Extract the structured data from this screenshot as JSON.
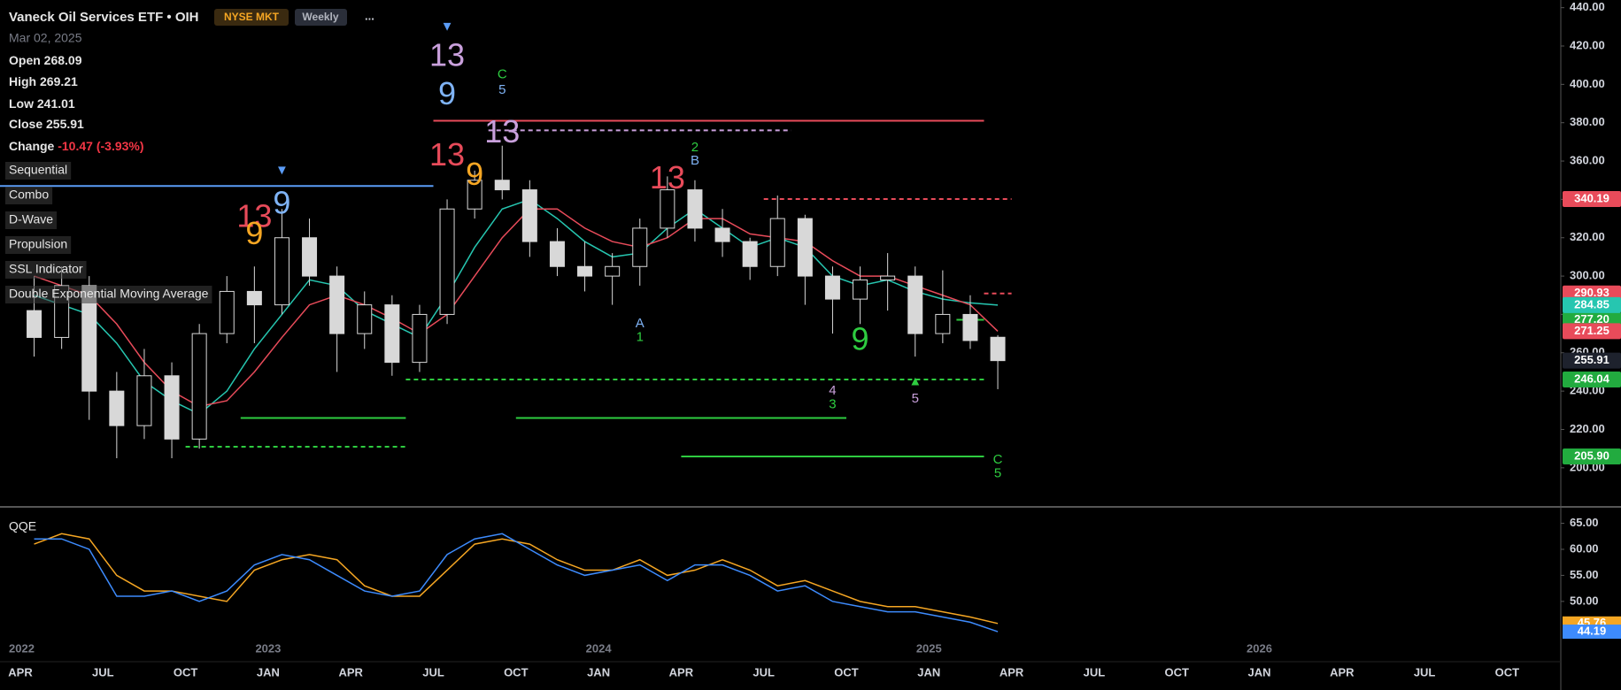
{
  "header": {
    "title": "Vaneck Oil Services ETF • OIH",
    "exchange": "NYSE MKT",
    "interval": "Weekly",
    "menu": "...",
    "date": "Mar 02, 2025",
    "open_label": "Open",
    "high_label": "High",
    "low_label": "Low",
    "close_label": "Close",
    "change_label": "Change",
    "change": -10.47,
    "change_percent_label": "(-3.93%)"
  },
  "indicators": [
    "Sequential",
    "Combo",
    "D-Wave",
    "Propulsion",
    "SSL Indicator",
    "Double Exponential Moving Average"
  ],
  "chart_data": [
    {
      "type": "candlestick",
      "x": [
        "2022-04",
        "2022-05",
        "2022-06",
        "2022-07",
        "2022-08",
        "2022-09",
        "2022-10",
        "2022-11",
        "2022-12",
        "2023-01",
        "2023-02",
        "2023-03",
        "2023-04",
        "2023-05",
        "2023-06",
        "2023-07",
        "2023-08",
        "2023-09",
        "2023-10",
        "2023-11",
        "2023-12",
        "2024-01",
        "2024-02",
        "2024-03",
        "2024-04",
        "2024-05",
        "2024-06",
        "2024-07",
        "2024-08",
        "2024-09",
        "2024-10",
        "2024-11",
        "2024-12",
        "2025-01",
        "2025-02",
        "2025-03"
      ],
      "open": [
        282,
        268,
        295,
        240,
        222,
        248,
        215,
        270,
        292,
        285,
        320,
        300,
        270,
        285,
        255,
        280,
        335,
        350,
        345,
        318,
        305,
        300,
        305,
        325,
        345,
        325,
        318,
        305,
        330,
        300,
        288,
        298,
        300,
        270,
        280,
        268.09
      ],
      "high": [
        300,
        305,
        300,
        250,
        262,
        255,
        275,
        300,
        305,
        335,
        330,
        305,
        292,
        290,
        285,
        340,
        355,
        368,
        350,
        325,
        318,
        312,
        330,
        352,
        350,
        335,
        320,
        342,
        332,
        305,
        305,
        312,
        305,
        303,
        290,
        269.21
      ],
      "low": [
        258,
        262,
        225,
        205,
        215,
        205,
        210,
        265,
        265,
        280,
        295,
        250,
        262,
        248,
        250,
        275,
        330,
        340,
        310,
        300,
        292,
        285,
        295,
        320,
        318,
        310,
        298,
        300,
        285,
        270,
        275,
        282,
        258,
        265,
        262,
        241.01
      ],
      "close": [
        268,
        295,
        240,
        222,
        248,
        215,
        270,
        292,
        285,
        320,
        300,
        270,
        285,
        255,
        280,
        335,
        350,
        345,
        318,
        305,
        300,
        305,
        325,
        345,
        325,
        318,
        305,
        330,
        300,
        288,
        298,
        300,
        270,
        280,
        266.38,
        255.91
      ],
      "candle_color": "#d8d8d8",
      "overlays": [
        {
          "color": "#26c6b0",
          "values": [
            290,
            285,
            280,
            265,
            245,
            235,
            228,
            240,
            262,
            280,
            298,
            295,
            282,
            275,
            268,
            290,
            315,
            335,
            340,
            330,
            318,
            310,
            312,
            325,
            335,
            325,
            315,
            320,
            315,
            300,
            295,
            298,
            292,
            288,
            286,
            284.85
          ]
        },
        {
          "color": "#e84b5a",
          "values": [
            300,
            295,
            290,
            275,
            255,
            240,
            232,
            235,
            250,
            268,
            285,
            290,
            285,
            278,
            270,
            280,
            300,
            320,
            335,
            335,
            325,
            318,
            315,
            320,
            330,
            330,
            322,
            320,
            318,
            308,
            300,
            300,
            295,
            290,
            285,
            271.25
          ]
        }
      ],
      "levels": [
        {
          "value": 381,
          "from": "2023-07",
          "to": "2025-03",
          "color": "#e84b5a",
          "dashed": false
        },
        {
          "value": 376,
          "from": "2023-09",
          "to": "2024-08",
          "color": "#c9a0dc",
          "dashed": true
        },
        {
          "value": 347,
          "from": "2022-03",
          "to": "2023-07",
          "color": "#5b9cf6",
          "dashed": false
        },
        {
          "value": 340.19,
          "label": "340.19",
          "from": "2024-07",
          "to": "2025-04",
          "color": "#e84b5a",
          "dashed": true
        },
        {
          "value": 290.93,
          "label": "290.93",
          "from": "2025-03",
          "to": "2025-04",
          "color": "#e84b5a",
          "dashed": true
        },
        {
          "value": 277.2,
          "label": "277.20",
          "from": "2025-02",
          "to": "2025-03",
          "color": "#2ecc40",
          "dashed": false
        },
        {
          "value": 246.04,
          "label": "246.04",
          "from": "2023-06",
          "to": "2025-03",
          "color": "#2ecc40",
          "dashed": true
        },
        {
          "value": 226,
          "from": "2022-12",
          "to": "2023-06",
          "color": "#2ecc40",
          "dashed": false
        },
        {
          "value": 226,
          "from": "2023-10",
          "to": "2024-10",
          "color": "#2ecc40",
          "dashed": false
        },
        {
          "value": 211,
          "from": "2022-10",
          "to": "2023-06",
          "color": "#2ecc40",
          "dashed": true
        },
        {
          "value": 205.9,
          "label": "205.90",
          "from": "2024-04",
          "to": "2025-03",
          "color": "#2ecc40",
          "dashed": false
        }
      ],
      "annotations": [
        {
          "text": "▼",
          "x": "2023-07",
          "y": 430,
          "color": "#5b9cf6"
        },
        {
          "text": "13",
          "x": "2023-07",
          "y": 414,
          "color": "#c9a0dc"
        },
        {
          "text": "9",
          "x": "2023-07",
          "y": 394,
          "color": "#7fb3f5"
        },
        {
          "text": "13",
          "x": "2023-07",
          "y": 362,
          "color": "#e84b5a"
        },
        {
          "text": "9",
          "x": "2023-08",
          "y": 352,
          "color": "#f5a623"
        },
        {
          "text": "13",
          "x": "2023-09",
          "y": 374,
          "color": "#c9a0dc"
        },
        {
          "text": "C",
          "x": "2023-09",
          "y": 405,
          "color": "#2ecc40"
        },
        {
          "text": "5",
          "x": "2023-09",
          "y": 397,
          "color": "#7fb3f5"
        },
        {
          "text": "▼",
          "x": "2023-01",
          "y": 355,
          "color": "#5b9cf6"
        },
        {
          "text": "9",
          "x": "2023-01",
          "y": 337,
          "color": "#7fb3f5"
        },
        {
          "text": "13",
          "x": "2022-12",
          "y": 330,
          "color": "#e84b5a"
        },
        {
          "text": "9",
          "x": "2022-12",
          "y": 321,
          "color": "#f5a623"
        },
        {
          "text": "13",
          "x": "2024-03",
          "y": 350,
          "color": "#e84b5a"
        },
        {
          "text": "2",
          "x": "2024-04",
          "y": 367,
          "color": "#2ecc40"
        },
        {
          "text": "B",
          "x": "2024-04",
          "y": 360,
          "color": "#7fb3f5"
        },
        {
          "text": "A",
          "x": "2024-02",
          "y": 275,
          "color": "#7fb3f5"
        },
        {
          "text": "1",
          "x": "2024-02",
          "y": 268,
          "color": "#2ecc40"
        },
        {
          "text": "9",
          "x": "2024-10",
          "y": 266,
          "color": "#2ecc40"
        },
        {
          "text": "4",
          "x": "2024-09",
          "y": 240,
          "color": "#c9a0dc"
        },
        {
          "text": "3",
          "x": "2024-09",
          "y": 233,
          "color": "#2ecc40"
        },
        {
          "text": "▲",
          "x": "2024-12",
          "y": 245,
          "color": "#2ecc40"
        },
        {
          "text": "5",
          "x": "2024-12",
          "y": 236,
          "color": "#c9a0dc"
        },
        {
          "text": "C",
          "x": "2025-03",
          "y": 204,
          "color": "#2ecc40"
        },
        {
          "text": "5",
          "x": "2025-03",
          "y": 197,
          "color": "#2ecc40"
        }
      ],
      "ylim": [
        181,
        444
      ],
      "yticks": [
        {
          "value": 200,
          "label": "200.00"
        },
        {
          "value": 220,
          "label": "220.00"
        },
        {
          "value": 240,
          "label": "240.00"
        },
        {
          "value": 260,
          "label": "260.00"
        },
        {
          "value": 280,
          "label": "280.00"
        },
        {
          "value": 300,
          "label": "300.00"
        },
        {
          "value": 320,
          "label": "320.00"
        },
        {
          "value": 340,
          "label": "340.00"
        },
        {
          "value": 360,
          "label": "360.00"
        },
        {
          "value": 380,
          "label": "380.00"
        },
        {
          "value": 400,
          "label": "400.00"
        },
        {
          "value": 420,
          "label": "420.00"
        },
        {
          "value": 440,
          "label": "440.00"
        }
      ],
      "xlim": [
        "2022-03",
        "2026-12"
      ],
      "xticks": [
        {
          "value": "2022-04",
          "label": "APR"
        },
        {
          "value": "2022-07",
          "label": "JUL"
        },
        {
          "value": "2022-10",
          "label": "OCT"
        },
        {
          "value": "2023-01",
          "label": "JAN"
        },
        {
          "value": "2023-04",
          "label": "APR"
        },
        {
          "value": "2023-07",
          "label": "JUL"
        },
        {
          "value": "2023-10",
          "label": "OCT"
        },
        {
          "value": "2024-01",
          "label": "JAN"
        },
        {
          "value": "2024-04",
          "label": "APR"
        },
        {
          "value": "2024-07",
          "label": "JUL"
        },
        {
          "value": "2024-10",
          "label": "OCT"
        },
        {
          "value": "2025-01",
          "label": "JAN"
        },
        {
          "value": "2025-04",
          "label": "APR"
        },
        {
          "value": "2025-07",
          "label": "JUL"
        },
        {
          "value": "2025-10",
          "label": "OCT"
        },
        {
          "value": "2026-01",
          "label": "JAN"
        },
        {
          "value": "2026-04",
          "label": "APR"
        },
        {
          "value": "2026-07",
          "label": "JUL"
        },
        {
          "value": "2026-10",
          "label": "OCT"
        }
      ],
      "year_ticks": [
        {
          "value": "2022-01",
          "label": "2022"
        },
        {
          "value": "2023-01",
          "label": "2023"
        },
        {
          "value": "2024-01",
          "label": "2024"
        },
        {
          "value": "2025-01",
          "label": "2025"
        },
        {
          "value": "2026-01",
          "label": "2026"
        }
      ]
    },
    {
      "type": "line",
      "title": "QQE",
      "series": [
        {
          "color": "#f5a623",
          "values": [
            61,
            63,
            62,
            55,
            52,
            52,
            51,
            50,
            56,
            58,
            59,
            58,
            53,
            51,
            51,
            56,
            61,
            62,
            61,
            58,
            56,
            56,
            58,
            55,
            56,
            58,
            56,
            53,
            54,
            52,
            50,
            49,
            49,
            48,
            47,
            45.76
          ]
        },
        {
          "color": "#3d8bfd",
          "values": [
            62,
            62,
            60,
            51,
            51,
            52,
            50,
            52,
            57,
            59,
            58,
            55,
            52,
            51,
            52,
            59,
            62,
            63,
            60,
            57,
            55,
            56,
            57,
            54,
            57,
            57,
            55,
            52,
            53,
            50,
            49,
            48,
            48,
            47,
            46,
            44.19
          ]
        }
      ],
      "ylim": [
        42.5,
        67.3
      ],
      "yticks": [
        {
          "value": 50,
          "label": "50.00"
        },
        {
          "value": 55,
          "label": "55.00"
        },
        {
          "value": 60,
          "label": "60.00"
        },
        {
          "value": 65,
          "label": "65.00"
        }
      ]
    }
  ]
}
